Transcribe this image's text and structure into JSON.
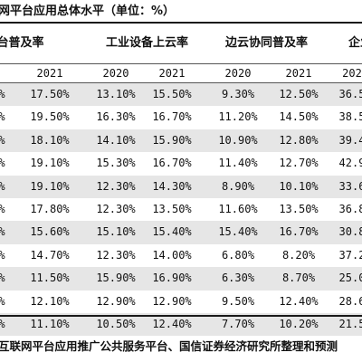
{
  "title": "网平台应用总体水平（单位：%）",
  "groups": [
    "台普及率",
    "工业设备上云率",
    "边云协同普及率",
    "企业"
  ],
  "years": [
    "2021",
    "2020",
    "2021",
    "2020",
    "2021",
    "202"
  ],
  "rows": [
    [
      "%",
      "17.50%",
      "13.10%",
      "15.50%",
      "9.30%",
      "12.50%",
      "36.5"
    ],
    [
      "%",
      "19.50%",
      "16.30%",
      "16.70%",
      "11.20%",
      "14.50%",
      "38.5"
    ],
    [
      "%",
      "18.10%",
      "14.10%",
      "15.90%",
      "10.90%",
      "12.80%",
      "39.4"
    ],
    [
      "%",
      "19.10%",
      "15.30%",
      "16.70%",
      "11.40%",
      "12.70%",
      "42.9"
    ],
    [
      "%",
      "19.10%",
      "12.30%",
      "14.30%",
      "8.90%",
      "10.10%",
      "33.6"
    ],
    [
      "%",
      "17.80%",
      "12.30%",
      "13.50%",
      "11.60%",
      "13.50%",
      "36.8"
    ],
    [
      "%",
      "15.60%",
      "15.10%",
      "15.40%",
      "15.40%",
      "16.70%",
      "30.8"
    ],
    [
      "%",
      "14.70%",
      "12.30%",
      "14.00%",
      "6.80%",
      "8.20%",
      "37.2"
    ],
    [
      "%",
      "11.50%",
      "15.90%",
      "16.90%",
      "6.30%",
      "8.70%",
      "25.0"
    ],
    [
      "%",
      "12.10%",
      "12.90%",
      "12.90%",
      "9.50%",
      "12.40%",
      "28.6"
    ],
    [
      "%",
      "11.10%",
      "10.50%",
      "12.40%",
      "7.70%",
      "10.20%",
      "21.5"
    ]
  ],
  "source": "互联网平台应用推广公共服务平台、国信证券经济研究所整理和预测"
}
